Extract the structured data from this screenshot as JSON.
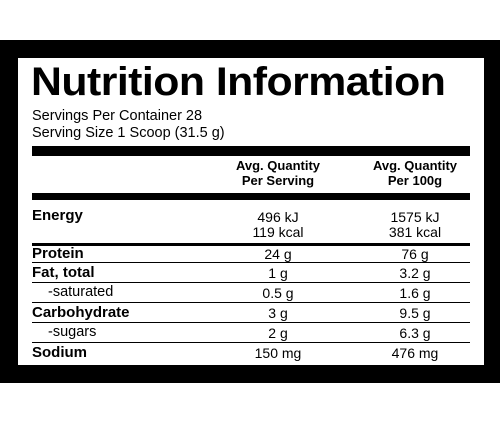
{
  "title": "Nutrition Information",
  "servings_per_container": "Servings Per Container 28",
  "serving_size": "Serving Size 1 Scoop (31.5 g)",
  "headers": {
    "per_serving": [
      "Avg. Quantity",
      "Per Serving"
    ],
    "per_100g": [
      "Avg. Quantity",
      "Per 100g"
    ]
  },
  "rows": [
    {
      "label": "Energy",
      "per_serving": [
        "496 kJ",
        "119 kcal"
      ],
      "per_100g": [
        "1575 kJ",
        "381 kcal"
      ]
    },
    {
      "label": "Protein",
      "per_serving": [
        "24 g"
      ],
      "per_100g": [
        "76 g"
      ]
    },
    {
      "label": "Fat, total",
      "per_serving": [
        "1 g"
      ],
      "per_100g": [
        "3.2 g"
      ]
    },
    {
      "label": "-saturated",
      "per_serving": [
        "0.5 g"
      ],
      "per_100g": [
        "1.6 g"
      ]
    },
    {
      "label": "Carbohydrate",
      "per_serving": [
        "3 g"
      ],
      "per_100g": [
        "9.5 g"
      ]
    },
    {
      "label": "-sugars",
      "per_serving": [
        "2 g"
      ],
      "per_100g": [
        "6.3 g"
      ]
    },
    {
      "label": "Sodium",
      "per_serving": [
        "150 mg"
      ],
      "per_100g": [
        "476 mg"
      ]
    }
  ]
}
